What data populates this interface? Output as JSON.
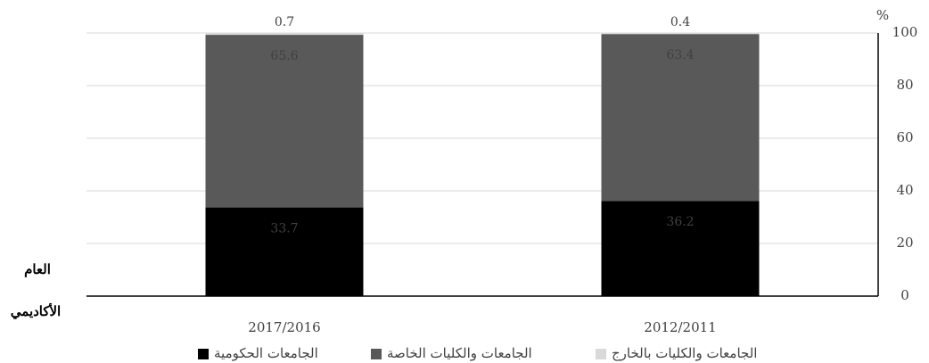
{
  "chart_data": {
    "type": "stacked_bar",
    "categories": [
      "2012/2011",
      "2017/2016"
    ],
    "series": [
      {
        "name": "الجامعات الحكومية",
        "color": "#000000",
        "label_color": "#ffffff",
        "values": [
          36.2,
          33.7
        ]
      },
      {
        "name": "الجامعات والكليات الخاصة",
        "color": "#595959",
        "label_color": "#ffffff",
        "values": [
          63.4,
          65.6
        ]
      },
      {
        "name": "الجامعات والكليات بالخارج",
        "color": "#d9d9d9",
        "label_color": "#000000",
        "values": [
          0.4,
          0.7
        ]
      }
    ],
    "ylim": [
      0,
      100
    ],
    "yticks": [
      0,
      20,
      40,
      60,
      80,
      100
    ],
    "y_unit": "%",
    "x_label_lines": [
      "العام",
      "الأكاديمي"
    ],
    "grid": true,
    "category_order": "right-to-left",
    "legend": "bottom"
  }
}
